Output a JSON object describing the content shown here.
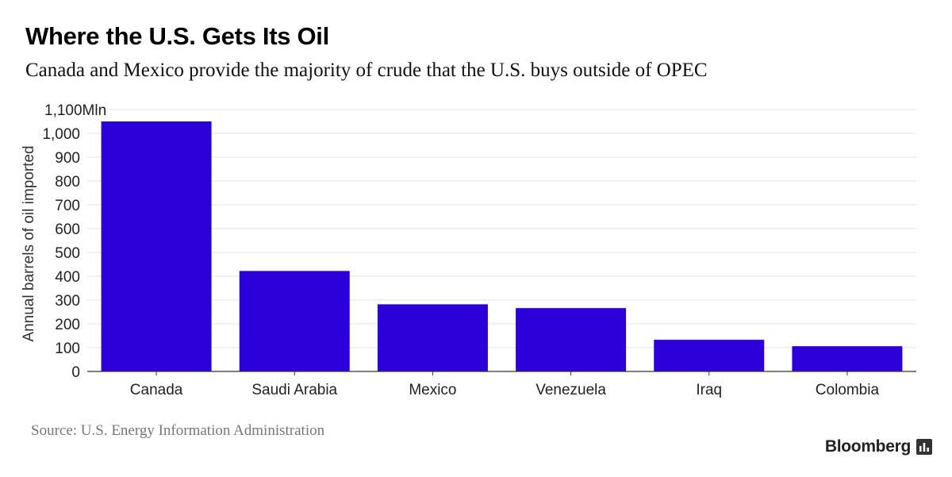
{
  "chart_data": {
    "type": "bar",
    "title": "Where the U.S. Gets Its Oil",
    "subtitle": "Canada and Mexico provide the majority of crude that the U.S. buys outside of OPEC",
    "ylabel": "Annual barrels of oil imported",
    "xlabel": "",
    "categories": [
      "Canada",
      "Saudi Arabia",
      "Mexico",
      "Venezuela",
      "Iraq",
      "Colombia"
    ],
    "values": [
      1050,
      422,
      282,
      266,
      133,
      106
    ],
    "ylim": [
      0,
      1100
    ],
    "yticks": [
      0,
      100,
      200,
      300,
      400,
      500,
      600,
      700,
      800,
      900,
      1000,
      1100
    ],
    "ytick_labels": [
      "0",
      "100",
      "200",
      "300",
      "400",
      "500",
      "600",
      "700",
      "800",
      "900",
      "1,000",
      "1,100Mln"
    ],
    "bar_color": "#2c00d9",
    "grid": true,
    "legend": "none"
  },
  "source": "Source: U.S. Energy Information Administration",
  "brand": {
    "name": "Bloomberg",
    "icon": "bar-chart-icon"
  }
}
